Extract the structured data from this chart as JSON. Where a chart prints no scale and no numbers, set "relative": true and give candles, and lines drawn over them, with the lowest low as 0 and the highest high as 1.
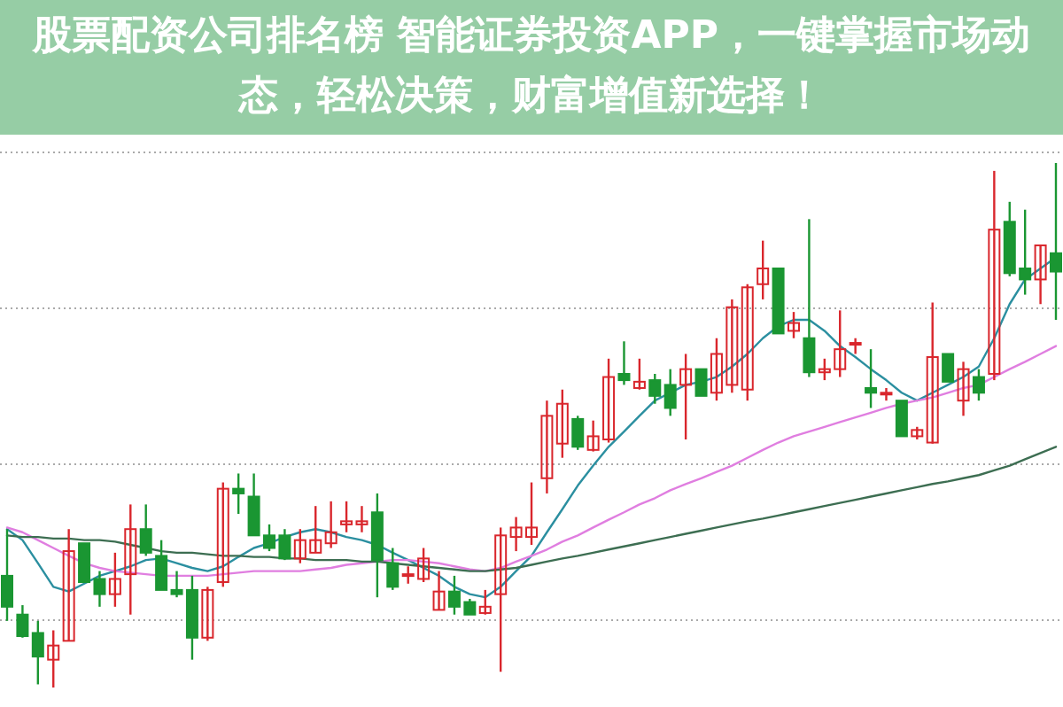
{
  "chart_data": {
    "type": "candlestick",
    "relative": true,
    "title": "股票配资公司排名榜 智能证券投资APP，一键掌握市场动态，轻松决策，财富增值新选择！",
    "grid": "y",
    "categories": [
      null,
      null,
      null,
      null,
      null,
      null,
      null,
      null,
      null,
      null,
      null,
      null,
      null,
      null,
      null,
      null,
      null,
      null,
      null,
      null,
      null,
      null,
      null,
      null,
      null,
      null,
      null,
      null,
      null,
      null,
      null,
      null,
      null,
      null,
      null,
      null,
      null,
      null,
      null,
      null,
      null,
      null,
      null,
      null,
      null,
      null,
      null,
      null,
      null,
      null,
      null,
      null,
      null,
      null,
      null,
      null,
      null,
      null,
      null,
      null,
      null,
      null,
      null,
      null,
      null,
      null,
      null,
      null,
      null
    ],
    "ohlc": [
      [
        0.213,
        0.302,
        0.127,
        0.154
      ],
      [
        0.139,
        0.157,
        0.095,
        0.098
      ],
      [
        0.104,
        0.127,
        0.006,
        0.059
      ],
      [
        0.053,
        0.109,
        0,
        0.08
      ],
      [
        0.089,
        0.302,
        0.089,
        0.26
      ],
      [
        0.275,
        0.275,
        0.201,
        0.201
      ],
      [
        0.207,
        0.222,
        0.154,
        0.178
      ],
      [
        0.178,
        0.257,
        0.154,
        0.207
      ],
      [
        0.216,
        0.349,
        0.139,
        0.302
      ],
      [
        0.302,
        0.349,
        0.251,
        0.257
      ],
      [
        0.251,
        0.281,
        0.186,
        0.186
      ],
      [
        0.186,
        0.222,
        0.172,
        0.178
      ],
      [
        0.186,
        0.213,
        0.053,
        0.095
      ],
      [
        0.095,
        0.192,
        0.089,
        0.186
      ],
      [
        0.201,
        0.391,
        0.192,
        0.379
      ],
      [
        0.379,
        0.408,
        0.331,
        0.37
      ],
      [
        0.364,
        0.408,
        0.29,
        0.29
      ],
      [
        0.29,
        0.311,
        0.26,
        0.266
      ],
      [
        0.29,
        0.302,
        0.243,
        0.246
      ],
      [
        0.246,
        0.302,
        0.237,
        0.281
      ],
      [
        0.257,
        0.346,
        0.257,
        0.281
      ],
      [
        0.275,
        0.355,
        0.266,
        0.296
      ],
      [
        0.311,
        0.355,
        0.296,
        0.317
      ],
      [
        0.311,
        0.346,
        0.296,
        0.317
      ],
      [
        0.334,
        0.37,
        0.172,
        0.243
      ],
      [
        0.237,
        0.266,
        0.186,
        0.192
      ],
      [
        0.213,
        0.231,
        0.198,
        0.216
      ],
      [
        0.207,
        0.266,
        0.201,
        0.246
      ],
      [
        0.148,
        0.222,
        0.148,
        0.183
      ],
      [
        0.183,
        0.213,
        0.139,
        0.154
      ],
      [
        0.163,
        0.169,
        0.139,
        0.139
      ],
      [
        0.142,
        0.186,
        0.139,
        0.154
      ],
      [
        0.178,
        0.305,
        0.03,
        0.29
      ],
      [
        0.287,
        0.325,
        0.26,
        0.305
      ],
      [
        0.287,
        0.391,
        0.272,
        0.305
      ],
      [
        0.399,
        0.547,
        0.37,
        0.518
      ],
      [
        0.465,
        0.568,
        0.438,
        0.541
      ],
      [
        0.512,
        0.518,
        0.453,
        0.459
      ],
      [
        0.453,
        0.509,
        0.45,
        0.479
      ],
      [
        0.473,
        0.627,
        0.467,
        0.592
      ],
      [
        0.598,
        0.66,
        0.577,
        0.586
      ],
      [
        0.571,
        0.627,
        0.568,
        0.583
      ],
      [
        0.586,
        0.598,
        0.541,
        0.556
      ],
      [
        0.577,
        0.607,
        0.518,
        0.533
      ],
      [
        0.577,
        0.636,
        0.473,
        0.607
      ],
      [
        0.607,
        0.607,
        0.556,
        0.556
      ],
      [
        0.562,
        0.666,
        0.547,
        0.636
      ],
      [
        0.577,
        0.74,
        0.562,
        0.725
      ],
      [
        0.568,
        0.769,
        0.547,
        0.763
      ],
      [
        0.769,
        0.852,
        0.74,
        0.799
      ],
      [
        0.799,
        0.799,
        0.675,
        0.675
      ],
      [
        0.68,
        0.716,
        0.666,
        0.695
      ],
      [
        0.666,
        0.893,
        0.592,
        0.601
      ],
      [
        0.601,
        0.627,
        0.586,
        0.607
      ],
      [
        0.607,
        0.719,
        0.592,
        0.645
      ],
      [
        0.654,
        0.666,
        0.636,
        0.657
      ],
      [
        0.571,
        0.645,
        0.533,
        0.562
      ],
      [
        0.559,
        0.571,
        0.547,
        0.562
      ],
      [
        0.547,
        0.547,
        0.479,
        0.479
      ],
      [
        0.479,
        0.497,
        0.473,
        0.491
      ],
      [
        0.467,
        0.734,
        0.465,
        0.63
      ],
      [
        0.636,
        0.636,
        0.583,
        0.583
      ],
      [
        0.547,
        0.621,
        0.518,
        0.607
      ],
      [
        0.592,
        0.607,
        0.547,
        0.562
      ],
      [
        0.598,
        0.985,
        0.586,
        0.873
      ],
      [
        0.888,
        0.926,
        0.784,
        0.79
      ],
      [
        0.799,
        0.911,
        0.749,
        0.778
      ],
      [
        0.778,
        0.843,
        0.731,
        0.843
      ],
      [
        0.828,
        1,
        0.701,
        0.793
      ]
    ],
    "colors": [
      "#1a9632",
      "#1a9632",
      "#1a9632",
      "#d9262c",
      "#d9262c",
      "#1a9632",
      "#1a9632",
      "#d9262c",
      "#d9262c",
      "#1a9632",
      "#1a9632",
      "#1a9632",
      "#1a9632",
      "#d9262c",
      "#d9262c",
      "#1a9632",
      "#1a9632",
      "#1a9632",
      "#1a9632",
      "#d9262c",
      "#d9262c",
      "#d9262c",
      "#d9262c",
      "#d9262c",
      "#1a9632",
      "#1a9632",
      "#d9262c",
      "#d9262c",
      "#d9262c",
      "#1a9632",
      "#1a9632",
      "#d9262c",
      "#d9262c",
      "#d9262c",
      "#d9262c",
      "#d9262c",
      "#d9262c",
      "#1a9632",
      "#d9262c",
      "#d9262c",
      "#1a9632",
      "#d9262c",
      "#1a9632",
      "#1a9632",
      "#d9262c",
      "#1a9632",
      "#d9262c",
      "#d9262c",
      "#d9262c",
      "#d9262c",
      "#1a9632",
      "#d9262c",
      "#1a9632",
      "#d9262c",
      "#d9262c",
      "#d9262c",
      "#1a9632",
      "#d9262c",
      "#1a9632",
      "#d9262c",
      "#d9262c",
      "#1a9632",
      "#d9262c",
      "#1a9632",
      "#d9262c",
      "#1a9632",
      "#1a9632",
      "#d9262c",
      "#1a9632"
    ],
    "series": [
      {
        "type": "line",
        "color": "#2b8fa0",
        "values": [
          0.302,
          0.281,
          0.237,
          0.192,
          0.183,
          0.198,
          0.213,
          0.222,
          0.231,
          0.243,
          0.246,
          0.237,
          0.228,
          0.222,
          0.231,
          0.249,
          0.266,
          0.275,
          0.287,
          0.296,
          0.302,
          0.296,
          0.287,
          0.281,
          0.272,
          0.257,
          0.243,
          0.228,
          0.213,
          0.192,
          0.178,
          0.172,
          0.192,
          0.222,
          0.251,
          0.296,
          0.34,
          0.385,
          0.423,
          0.459,
          0.488,
          0.518,
          0.547,
          0.562,
          0.577,
          0.583,
          0.592,
          0.612,
          0.636,
          0.666,
          0.689,
          0.701,
          0.701,
          0.68,
          0.651,
          0.63,
          0.607,
          0.586,
          0.562,
          0.547,
          0.562,
          0.577,
          0.592,
          0.612,
          0.666,
          0.731,
          0.778,
          0.799,
          0.82
        ]
      },
      {
        "type": "line",
        "color": "#e07ee0",
        "values": [
          0.305,
          0.296,
          0.281,
          0.266,
          0.251,
          0.237,
          0.228,
          0.222,
          0.219,
          0.216,
          0.213,
          0.213,
          0.213,
          0.213,
          0.216,
          0.219,
          0.222,
          0.222,
          0.222,
          0.222,
          0.225,
          0.228,
          0.234,
          0.237,
          0.24,
          0.243,
          0.243,
          0.24,
          0.237,
          0.231,
          0.225,
          0.222,
          0.228,
          0.24,
          0.251,
          0.263,
          0.278,
          0.29,
          0.305,
          0.32,
          0.334,
          0.349,
          0.361,
          0.376,
          0.388,
          0.399,
          0.411,
          0.423,
          0.438,
          0.453,
          0.467,
          0.479,
          0.488,
          0.497,
          0.506,
          0.515,
          0.524,
          0.533,
          0.541,
          0.547,
          0.553,
          0.562,
          0.571,
          0.577,
          0.592,
          0.607,
          0.621,
          0.636,
          0.651
        ]
      },
      {
        "type": "line",
        "color": "#3d6e52",
        "values": [
          0.29,
          0.287,
          0.287,
          0.284,
          0.284,
          0.281,
          0.281,
          0.278,
          0.272,
          0.266,
          0.26,
          0.257,
          0.257,
          0.254,
          0.251,
          0.251,
          0.249,
          0.249,
          0.246,
          0.246,
          0.243,
          0.243,
          0.243,
          0.24,
          0.24,
          0.237,
          0.234,
          0.231,
          0.228,
          0.225,
          0.222,
          0.222,
          0.225,
          0.228,
          0.234,
          0.24,
          0.246,
          0.251,
          0.257,
          0.263,
          0.269,
          0.275,
          0.281,
          0.287,
          0.293,
          0.299,
          0.305,
          0.311,
          0.317,
          0.322,
          0.328,
          0.334,
          0.34,
          0.346,
          0.352,
          0.358,
          0.364,
          0.37,
          0.376,
          0.382,
          0.388,
          0.393,
          0.399,
          0.405,
          0.414,
          0.423,
          0.435,
          0.447,
          0.459
        ]
      }
    ]
  }
}
